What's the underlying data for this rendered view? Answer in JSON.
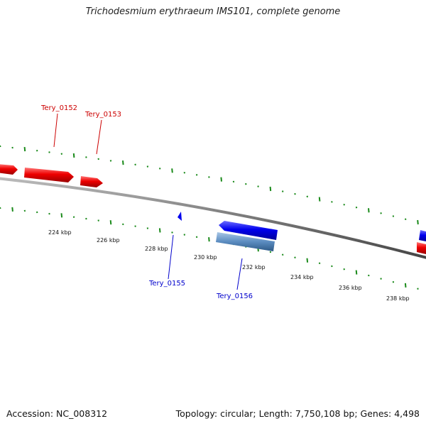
{
  "title": "Trichodesmium erythraeum IMS101, complete genome",
  "footer": {
    "accession": "Accession: NC_008312",
    "summary": "Topology: circular; Length: 7,750,108 bp; Genes: 4,498"
  },
  "colors": {
    "forward_gene": "#ff0000",
    "reverse_gene": "#0000ff",
    "rna_gene": "#5f8fc0",
    "tick": "#1a8a1a",
    "backbone": "#777777"
  },
  "ticks": [
    {
      "kbp": 224,
      "label": "224 kbp"
    },
    {
      "kbp": 226,
      "label": "226 kbp"
    },
    {
      "kbp": 228,
      "label": "228 kbp"
    },
    {
      "kbp": 230,
      "label": "230 kbp"
    },
    {
      "kbp": 232,
      "label": "232 kbp"
    },
    {
      "kbp": 234,
      "label": "234 kbp"
    },
    {
      "kbp": 236,
      "label": "236 kbp"
    },
    {
      "kbp": 238,
      "label": "238 kbp"
    }
  ],
  "genes": [
    {
      "label": "Tery_0152",
      "strand": "+",
      "type": "CDS"
    },
    {
      "label": "Tery_0153",
      "strand": "+",
      "type": "CDS"
    },
    {
      "label": "Tery_0155",
      "strand": "-",
      "type": "CDS"
    },
    {
      "label": "Tery_0156",
      "strand": "-",
      "type": "CDS"
    }
  ]
}
